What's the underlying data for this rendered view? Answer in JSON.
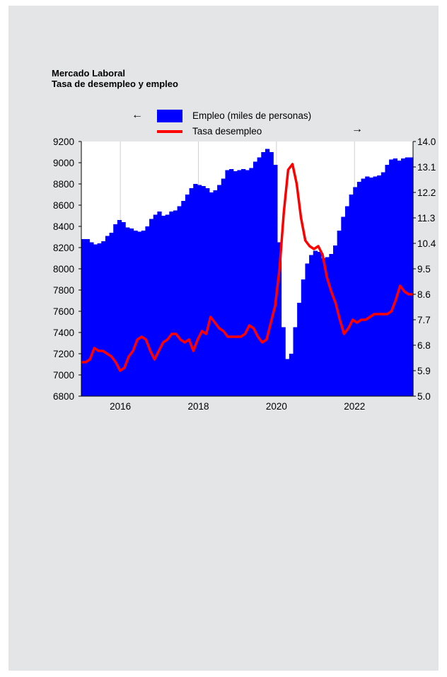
{
  "title": "Mercado Laboral",
  "subtitle": "Tasa de desempleo y empleo",
  "legend": {
    "employment_label": "Empleo (miles de personas)",
    "unemployment_label": "Tasa desempleo",
    "left_arrow": "←",
    "right_arrow": "→"
  },
  "colors": {
    "employment": "#0000ff",
    "unemployment": "#ff0000",
    "background": "#e4e5e7"
  },
  "chart_data": {
    "type": "bar",
    "x_ticks": [
      "2016",
      "2018",
      "2020",
      "2022"
    ],
    "x_start": 2015.0,
    "x_end": 2023.5,
    "y_left": {
      "ylim": [
        6800,
        9200
      ],
      "ticks": [
        "9200",
        "9000",
        "8800",
        "8600",
        "8400",
        "8200",
        "8000",
        "7800",
        "7600",
        "7400",
        "7200",
        "7000",
        "6800"
      ]
    },
    "y_right": {
      "ylim": [
        5.0,
        14.0
      ],
      "ticks": [
        "14.0",
        "13.1",
        "12.2",
        "11.3",
        "10.4",
        "9.5",
        "8.6",
        "7.7",
        "6.8",
        "5.9",
        "5.0"
      ]
    },
    "series": [
      {
        "name": "Empleo (miles de personas)",
        "type": "bar",
        "axis": "left",
        "values": [
          8280,
          8280,
          8250,
          8230,
          8240,
          8260,
          8310,
          8340,
          8420,
          8460,
          8440,
          8390,
          8380,
          8360,
          8350,
          8360,
          8400,
          8470,
          8510,
          8540,
          8500,
          8510,
          8540,
          8550,
          8590,
          8640,
          8700,
          8760,
          8800,
          8790,
          8780,
          8760,
          8720,
          8740,
          8790,
          8850,
          8930,
          8940,
          8920,
          8930,
          8940,
          8930,
          8950,
          9010,
          9050,
          9100,
          9130,
          9100,
          8980,
          8250,
          7450,
          7150,
          7200,
          7450,
          7680,
          7900,
          8050,
          8130,
          8170,
          8160,
          8100,
          8110,
          8140,
          8220,
          8360,
          8490,
          8590,
          8700,
          8770,
          8820,
          8850,
          8870,
          8860,
          8870,
          8880,
          8910,
          8980,
          9030,
          9040,
          9020,
          9040,
          9050,
          9050
        ]
      },
      {
        "name": "Tasa desempleo",
        "type": "line",
        "axis": "right",
        "x_start": 2015.0,
        "x_end": 2023.5,
        "values": [
          6.2,
          6.2,
          6.3,
          6.7,
          6.6,
          6.6,
          6.5,
          6.4,
          6.2,
          5.9,
          6.0,
          6.4,
          6.6,
          7.0,
          7.1,
          7.0,
          6.6,
          6.3,
          6.6,
          6.9,
          7.0,
          7.2,
          7.2,
          7.0,
          6.9,
          7.0,
          6.6,
          7.0,
          7.3,
          7.2,
          7.8,
          7.6,
          7.4,
          7.3,
          7.1,
          7.1,
          7.1,
          7.1,
          7.2,
          7.5,
          7.4,
          7.1,
          6.9,
          7.0,
          7.6,
          8.2,
          9.5,
          11.5,
          13.0,
          13.2,
          12.5,
          11.3,
          10.5,
          10.3,
          10.2,
          10.3,
          10.0,
          9.2,
          8.7,
          8.3,
          7.7,
          7.2,
          7.4,
          7.7,
          7.6,
          7.7,
          7.7,
          7.8,
          7.9,
          7.9,
          7.9,
          7.9,
          8.0,
          8.4,
          8.9,
          8.7,
          8.6,
          8.6
        ]
      }
    ]
  }
}
